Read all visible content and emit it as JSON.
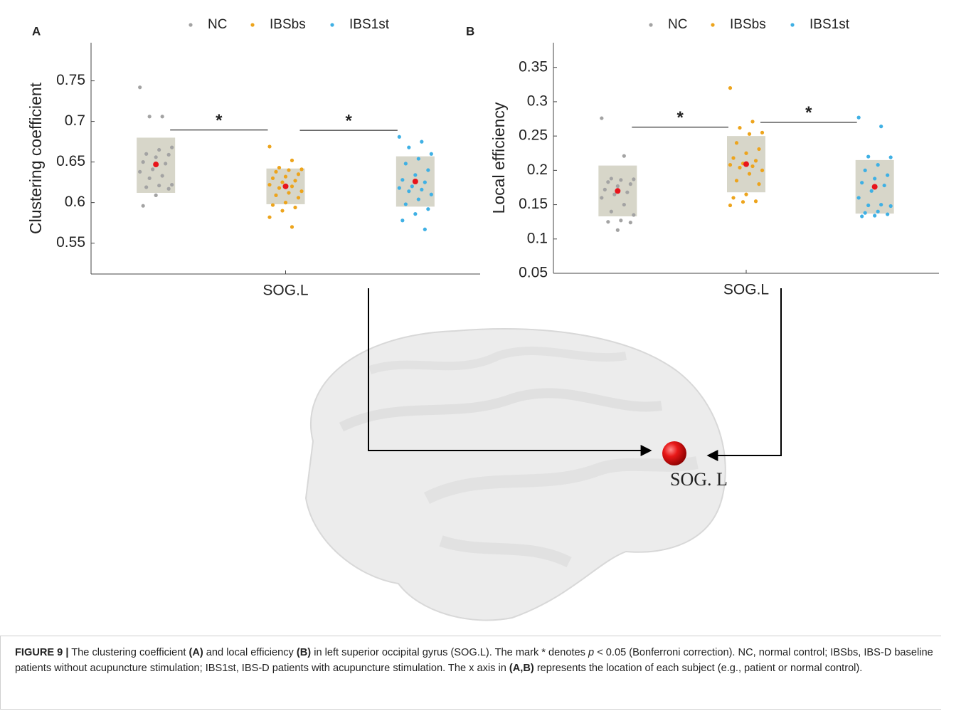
{
  "chart_data": [
    {
      "type": "scatter",
      "panel": "A",
      "ylabel": "Clustering coefficient",
      "categories": [
        "SOG.L"
      ],
      "ylim": [
        0.512,
        0.797
      ],
      "yticks": [
        0.55,
        0.6,
        0.65,
        0.7,
        0.75
      ],
      "mean_color": "#e8141b",
      "box_color": "#d7d6c9",
      "series": [
        {
          "name": "NC",
          "color": "#a3a3a3",
          "mean": 0.647,
          "box": [
            0.612,
            0.68
          ],
          "values": [
            0.742,
            0.706,
            0.706,
            0.668,
            0.665,
            0.66,
            0.659,
            0.656,
            0.65,
            0.648,
            0.641,
            0.638,
            0.633,
            0.63,
            0.622,
            0.621,
            0.619,
            0.617,
            0.609,
            0.596
          ]
        },
        {
          "name": "IBSbs",
          "color": "#eda41c",
          "mean": 0.62,
          "box": [
            0.598,
            0.642
          ],
          "values": [
            0.669,
            0.652,
            0.643,
            0.641,
            0.64,
            0.638,
            0.635,
            0.632,
            0.63,
            0.627,
            0.625,
            0.622,
            0.62,
            0.618,
            0.614,
            0.612,
            0.609,
            0.606,
            0.6,
            0.597,
            0.594,
            0.59,
            0.582,
            0.57
          ]
        },
        {
          "name": "IBS1st",
          "color": "#3fb0e4",
          "mean": 0.626,
          "box": [
            0.595,
            0.657
          ],
          "values": [
            0.681,
            0.675,
            0.668,
            0.66,
            0.654,
            0.648,
            0.64,
            0.634,
            0.628,
            0.625,
            0.62,
            0.618,
            0.616,
            0.614,
            0.61,
            0.604,
            0.598,
            0.592,
            0.586,
            0.578,
            0.567
          ]
        }
      ],
      "annotations": [
        {
          "text": "*",
          "between": [
            0,
            1
          ],
          "y": 0.6895
        },
        {
          "text": "*",
          "between": [
            1,
            2
          ],
          "y": 0.689
        }
      ]
    },
    {
      "type": "scatter",
      "panel": "B",
      "ylabel": "Local efficiency",
      "categories": [
        "SOG.L"
      ],
      "ylim": [
        0.05,
        0.386
      ],
      "yticks": [
        0.05,
        0.1,
        0.15,
        0.2,
        0.25,
        0.3,
        0.35
      ],
      "mean_color": "#e8141b",
      "box_color": "#d7d6c9",
      "series": [
        {
          "name": "NC",
          "color": "#a3a3a3",
          "mean": 0.17,
          "box": [
            0.133,
            0.207
          ],
          "values": [
            0.276,
            0.221,
            0.188,
            0.187,
            0.186,
            0.183,
            0.18,
            0.177,
            0.172,
            0.168,
            0.165,
            0.16,
            0.15,
            0.14,
            0.135,
            0.127,
            0.125,
            0.124,
            0.113
          ]
        },
        {
          "name": "IBSbs",
          "color": "#eda41c",
          "mean": 0.209,
          "box": [
            0.168,
            0.25
          ],
          "values": [
            0.32,
            0.271,
            0.262,
            0.255,
            0.253,
            0.24,
            0.231,
            0.225,
            0.218,
            0.214,
            0.21,
            0.208,
            0.206,
            0.204,
            0.2,
            0.195,
            0.185,
            0.18,
            0.165,
            0.16,
            0.155,
            0.154,
            0.149
          ]
        },
        {
          "name": "IBS1st",
          "color": "#3fb0e4",
          "mean": 0.176,
          "box": [
            0.137,
            0.215
          ],
          "values": [
            0.277,
            0.264,
            0.22,
            0.219,
            0.208,
            0.2,
            0.193,
            0.188,
            0.182,
            0.178,
            0.17,
            0.16,
            0.15,
            0.149,
            0.148,
            0.14,
            0.138,
            0.136,
            0.134,
            0.133
          ]
        }
      ],
      "annotations": [
        {
          "text": "*",
          "between": [
            0,
            1
          ],
          "y": 0.263
        },
        {
          "text": "*",
          "between": [
            1,
            2
          ],
          "y": 0.27
        }
      ]
    }
  ],
  "brain_label": "SOG. L",
  "caption": [
    "FIGURE 9 |",
    " The clustering coefficient ",
    "(A)",
    " and local efficiency ",
    "(B)",
    " in left superior occipital gyrus (SOG.L). The mark * denotes ",
    "p",
    " < 0.05 (Bonferroni correction). NC, normal control; IBSbs, IBS-D baseline patients without acupuncture stimulation; IBS1st, IBS-D patients with acupuncture stimulation. The x axis in ",
    "(A,B)",
    " represents the location of each subject (e.g., patient or normal control)."
  ]
}
